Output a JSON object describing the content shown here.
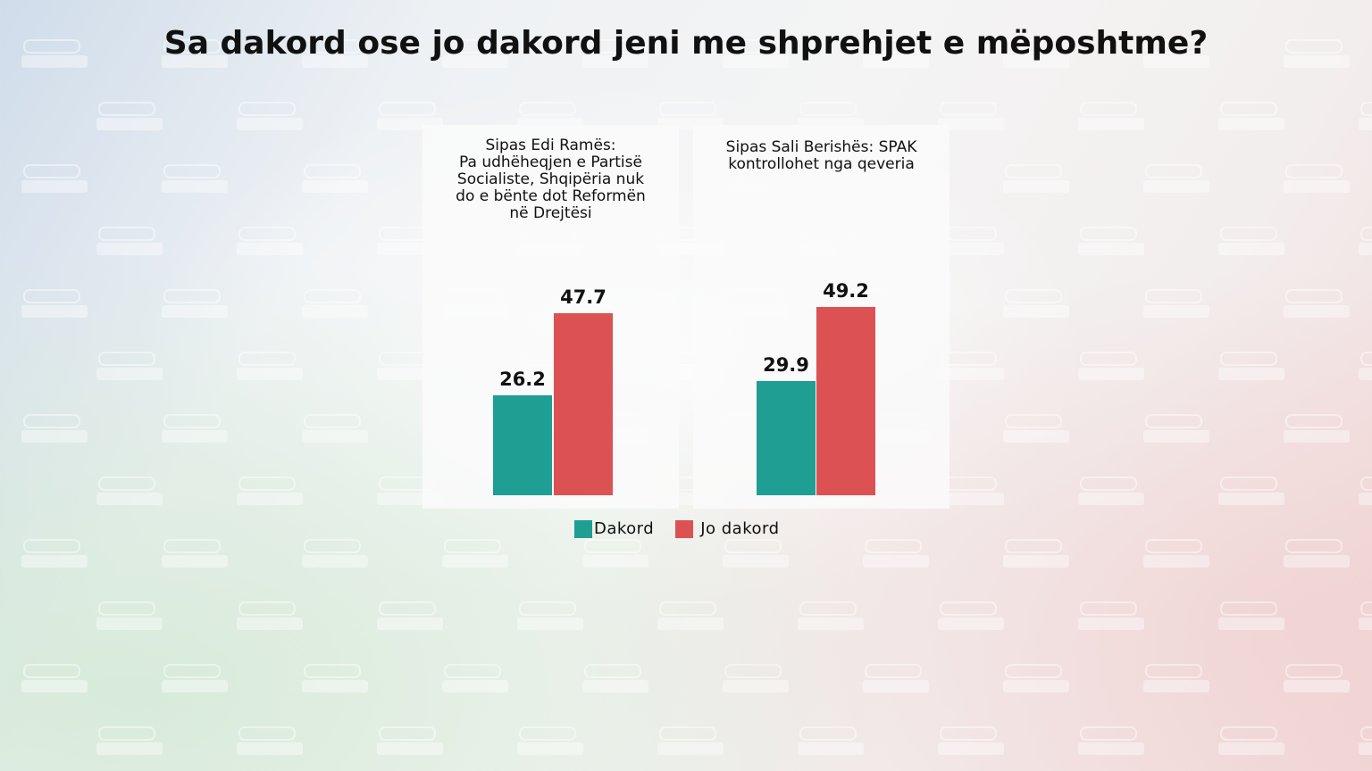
{
  "watermark": "euro news.",
  "chart_data": {
    "type": "bar",
    "title": "Sa dakord ose jo dakord jeni me shprehjet e mëposhtme?",
    "legend_position": "bottom",
    "series": [
      {
        "name": "Dakord",
        "color": "#1f9e94"
      },
      {
        "name": "Jo dakord",
        "color": "#dc5253"
      }
    ],
    "ylim": [
      0,
      55
    ],
    "panels": [
      {
        "title": "Sipas Edi Ramës:\nPa udhëheqjen e Partisë\nSocialiste, Shqipëria nuk\ndo e bënte dot Reformën\nnë Drejtësi",
        "values": [
          26.2,
          47.7
        ],
        "labels": [
          "26.2",
          "47.7"
        ]
      },
      {
        "title": "Sipas Sali Berishës: SPAK\nkontrollohet nga qeveria",
        "values": [
          29.9,
          49.2
        ],
        "labels": [
          "29.9",
          "49.2"
        ]
      }
    ]
  }
}
